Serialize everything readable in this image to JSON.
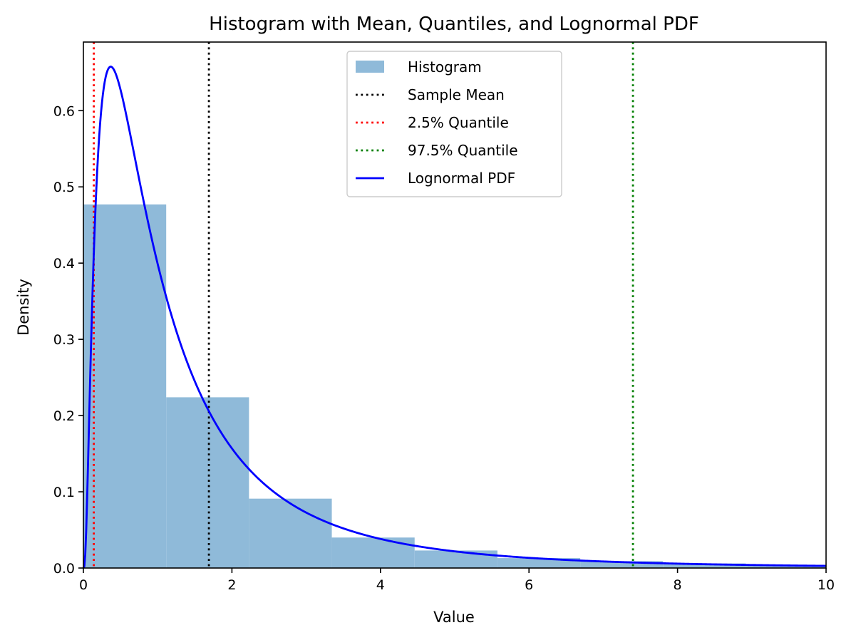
{
  "chart_data": {
    "type": "bar",
    "title": "Histogram with Mean, Quantiles, and Lognormal PDF",
    "xlabel": "Value",
    "ylabel": "Density",
    "xlim": [
      0,
      10
    ],
    "ylim": [
      0,
      0.69
    ],
    "xticks": [
      0,
      2,
      4,
      6,
      8,
      10
    ],
    "xtick_labels": [
      "0",
      "2",
      "4",
      "6",
      "8",
      "10"
    ],
    "yticks": [
      0,
      0.1,
      0.2,
      0.3,
      0.4,
      0.5,
      0.6
    ],
    "ytick_labels": [
      "0.0",
      "0.1",
      "0.2",
      "0.3",
      "0.4",
      "0.5",
      "0.6"
    ],
    "grid": false,
    "legend_position": "top-center",
    "histogram": {
      "name": "Histogram",
      "color": "#8fbad9",
      "bin_edges": [
        0,
        1.115,
        2.23,
        3.345,
        4.46,
        5.575,
        6.69,
        7.805,
        8.92,
        10.035
      ],
      "values": [
        0.477,
        0.224,
        0.091,
        0.04,
        0.023,
        0.013,
        0.009,
        0.006,
        0.004
      ]
    },
    "vlines": [
      {
        "name": "Sample Mean",
        "x": 1.69,
        "color": "#000000"
      },
      {
        "name": "2.5% Quantile",
        "x": 0.14,
        "color": "#ff0000"
      },
      {
        "name": "97.5% Quantile",
        "x": 7.4,
        "color": "#008000"
      }
    ],
    "pdf": {
      "name": "Lognormal PDF",
      "color": "#0000ff",
      "mu": 0.0,
      "sigma": 1.0
    },
    "legend": [
      {
        "label": "Histogram",
        "kind": "patch",
        "color": "#8fbad9"
      },
      {
        "label": "Sample Mean",
        "kind": "dotted",
        "color": "#000000"
      },
      {
        "label": "2.5% Quantile",
        "kind": "dotted",
        "color": "#ff0000"
      },
      {
        "label": "97.5% Quantile",
        "kind": "dotted",
        "color": "#008000"
      },
      {
        "label": "Lognormal PDF",
        "kind": "solid",
        "color": "#0000ff"
      }
    ]
  }
}
